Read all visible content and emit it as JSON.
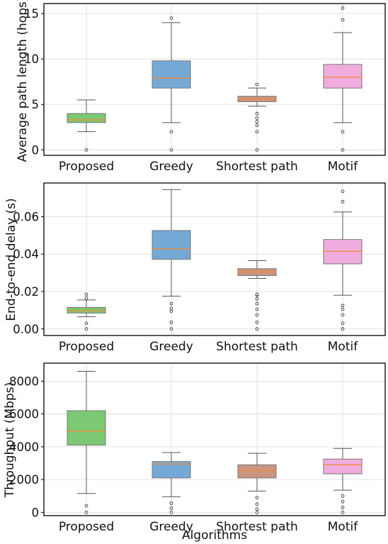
{
  "chart_data": [
    {
      "type": "box",
      "categories": [
        "Proposed",
        "Greedy",
        "Shortest path",
        "Motif"
      ],
      "ylabel": "Average path length (hops)",
      "xlabel": "",
      "ylim": [
        -0.6,
        16.1
      ],
      "yticks": [
        0,
        5,
        10,
        15
      ],
      "ytick_labels": [
        "0",
        "5",
        "10",
        "15"
      ],
      "grid": true,
      "colors": [
        "#7dc873",
        "#74a9d6",
        "#c99580",
        "#f0acdf"
      ],
      "series": [
        {
          "whisker_low": 2.0,
          "q1": 3.0,
          "median": 3.3,
          "q3": 4.0,
          "whisker_high": 5.5,
          "outliers": [
            0
          ]
        },
        {
          "whisker_low": 3.0,
          "q1": 6.8,
          "median": 7.9,
          "q3": 9.8,
          "whisker_high": 14.0,
          "outliers": [
            0,
            2.0,
            14.5
          ]
        },
        {
          "whisker_low": 4.8,
          "q1": 5.3,
          "median": 5.6,
          "q3": 5.9,
          "whisker_high": 6.8,
          "outliers": [
            0,
            2.0,
            2.7,
            3.1,
            3.5,
            4.0,
            7.2
          ]
        },
        {
          "whisker_low": 3.0,
          "q1": 6.8,
          "median": 8.0,
          "q3": 9.4,
          "whisker_high": 12.9,
          "outliers": [
            0,
            2.0,
            14.3,
            15.6
          ]
        }
      ]
    },
    {
      "type": "box",
      "categories": [
        "Proposed",
        "Greedy",
        "Shortest path",
        "Motif"
      ],
      "ylabel": "End-to-end delay (s)",
      "xlabel": "",
      "ylim": [
        -0.0035,
        0.078
      ],
      "yticks": [
        0.0,
        0.02,
        0.04,
        0.06
      ],
      "ytick_labels": [
        "0.00",
        "0.02",
        "0.04",
        "0.06"
      ],
      "grid": true,
      "colors": [
        "#7dc873",
        "#74a9d6",
        "#c99580",
        "#f0acdf"
      ],
      "series": [
        {
          "whisker_low": 0.0065,
          "q1": 0.0085,
          "median": 0.0098,
          "q3": 0.0115,
          "whisker_high": 0.0155,
          "outliers": [
            0,
            0.003,
            0.0165,
            0.0185
          ]
        },
        {
          "whisker_low": 0.0175,
          "q1": 0.0372,
          "median": 0.0428,
          "q3": 0.0526,
          "whisker_high": 0.0745,
          "outliers": [
            0,
            0.0035,
            0.0095,
            0.011,
            0.0135
          ]
        },
        {
          "whisker_low": 0.027,
          "q1": 0.0285,
          "median": 0.0305,
          "q3": 0.0322,
          "whisker_high": 0.0365,
          "outliers": [
            0,
            0.0035,
            0.0075,
            0.0105,
            0.0135,
            0.016,
            0.018,
            0.0185
          ]
        },
        {
          "whisker_low": 0.018,
          "q1": 0.0348,
          "median": 0.0415,
          "q3": 0.0478,
          "whisker_high": 0.0625,
          "outliers": [
            0,
            0.003,
            0.0075,
            0.0105,
            0.0125,
            0.068,
            0.0735
          ]
        }
      ]
    },
    {
      "type": "box",
      "categories": [
        "Proposed",
        "Greedy",
        "Shortest path",
        "Motif"
      ],
      "ylabel": "Throughput (Mbps)",
      "xlabel": "Algorithms",
      "ylim": [
        -200,
        9100
      ],
      "yticks": [
        0,
        2000,
        4000,
        6000,
        8000
      ],
      "ytick_labels": [
        "0",
        "2000",
        "4000",
        "6000",
        "8000"
      ],
      "grid": true,
      "colors": [
        "#7dc873",
        "#74a9d6",
        "#c99580",
        "#f0acdf"
      ],
      "series": [
        {
          "whisker_low": 1150,
          "q1": 4100,
          "median": 4950,
          "q3": 6200,
          "whisker_high": 8600,
          "outliers": [
            0,
            400
          ]
        },
        {
          "whisker_low": 950,
          "q1": 2100,
          "median": 2950,
          "q3": 3100,
          "whisker_high": 3650,
          "outliers": [
            0,
            250,
            550
          ]
        },
        {
          "whisker_low": 1300,
          "q1": 2100,
          "median": 2550,
          "q3": 2900,
          "whisker_high": 3600,
          "outliers": [
            0,
            200,
            500,
            900
          ]
        },
        {
          "whisker_low": 1350,
          "q1": 2350,
          "median": 2900,
          "q3": 3250,
          "whisker_high": 3900,
          "outliers": [
            0,
            300,
            650,
            1000
          ]
        }
      ]
    }
  ]
}
